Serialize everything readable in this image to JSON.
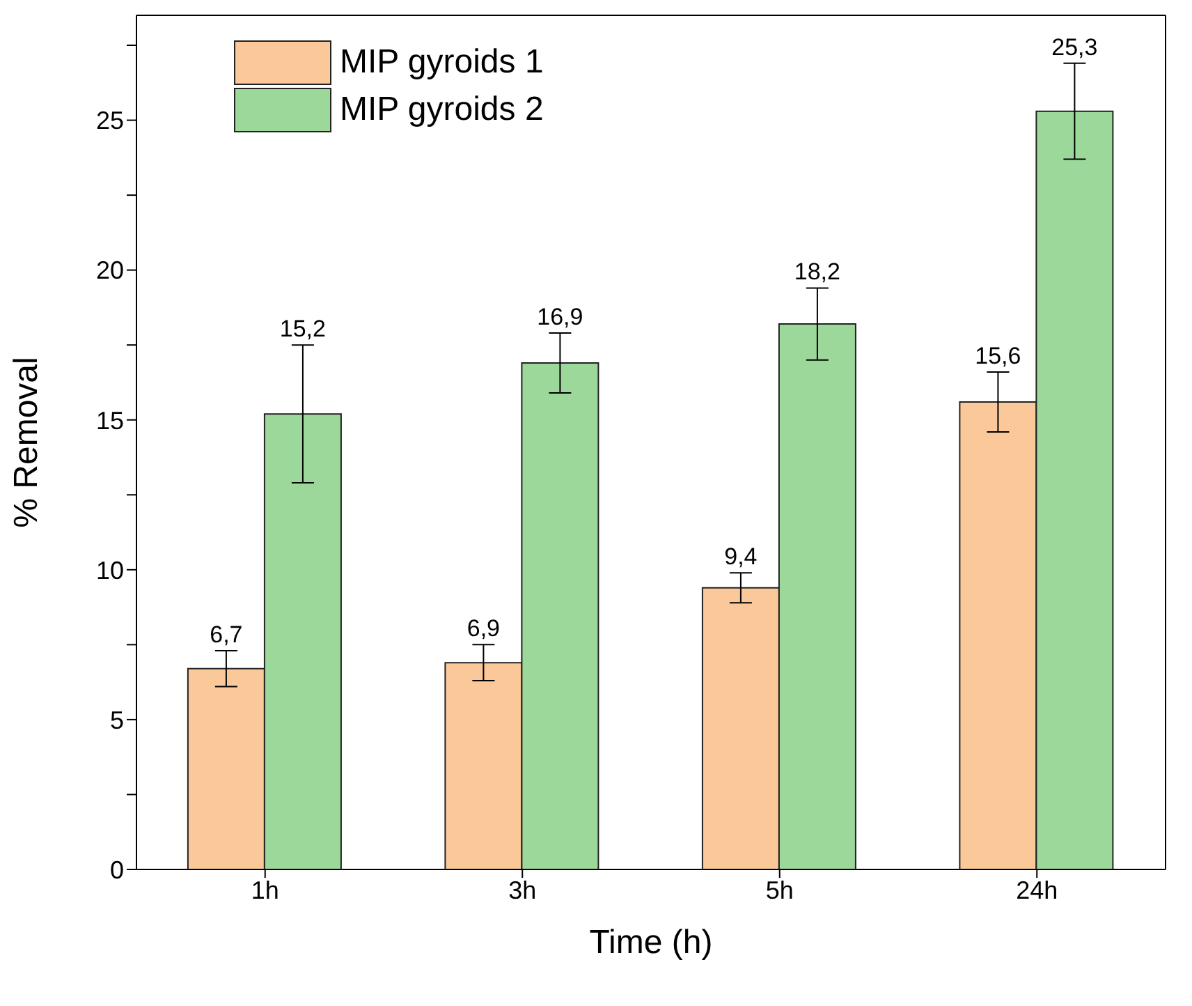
{
  "chart_data": {
    "type": "bar",
    "xlabel": "Time (h)",
    "ylabel": "% Removal",
    "categories": [
      "1h",
      "3h",
      "5h",
      "24h"
    ],
    "series": [
      {
        "name": "MIP gyroids 1",
        "color": "#fbc899",
        "values": [
          6.7,
          6.9,
          9.4,
          15.6
        ],
        "errors": [
          0.6,
          0.6,
          0.5,
          1.0
        ],
        "value_labels": [
          "6,7",
          "6,9",
          "9,4",
          "15,6"
        ]
      },
      {
        "name": "MIP gyroids 2",
        "color": "#9dd89b",
        "values": [
          15.2,
          16.9,
          18.2,
          25.3
        ],
        "errors": [
          2.3,
          1.0,
          1.2,
          1.6
        ],
        "value_labels": [
          "15,2",
          "16,9",
          "18,2",
          "25,3"
        ]
      }
    ],
    "ylim": [
      0,
      28.5
    ],
    "yticks": [
      0,
      {
        "value": 2.5,
        "label": null
      },
      5,
      {
        "value": 7.5,
        "label": null
      },
      10,
      {
        "value": 12.5,
        "label": null
      },
      15,
      {
        "value": 17.5,
        "label": null
      },
      20,
      {
        "value": 22.5,
        "label": null
      },
      25,
      {
        "value": 27.5,
        "label": null
      }
    ],
    "grid": false,
    "legend": "top left"
  }
}
